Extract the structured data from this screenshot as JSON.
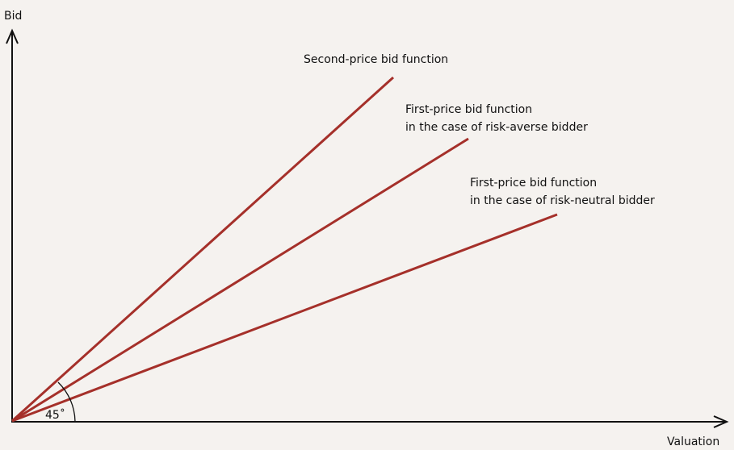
{
  "axes": {
    "y_label": "Bid",
    "x_label": "Valuation"
  },
  "curves": [
    {
      "lines": [
        "Second-price bid function"
      ]
    },
    {
      "lines": [
        "First-price bid function",
        "in the case of risk-averse bidder"
      ]
    },
    {
      "lines": [
        "First-price bid function",
        "in the case of risk-neutral bidder"
      ]
    }
  ],
  "angle": {
    "label": "45˚"
  }
}
